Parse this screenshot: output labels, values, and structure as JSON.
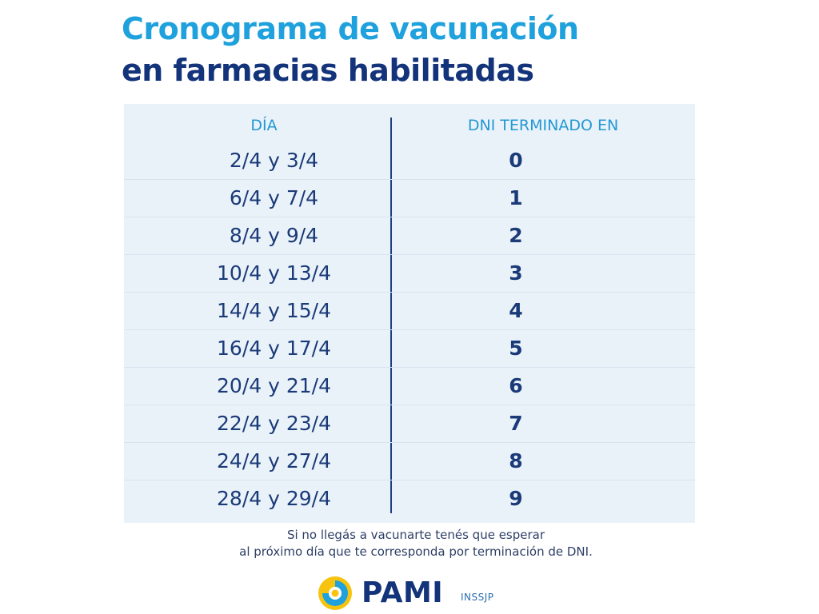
{
  "title": {
    "line1": "Cronograma de vacunación",
    "line2": "en farmacias habilitadas"
  },
  "table": {
    "headers": {
      "day": "DÍA",
      "dni": "DNI TERMINADO EN"
    },
    "rows": [
      {
        "day": "2/4 y 3/4",
        "digit": "0"
      },
      {
        "day": "6/4 y 7/4",
        "digit": "1"
      },
      {
        "day": "8/4 y 9/4",
        "digit": "2"
      },
      {
        "day": "10/4 y 13/4",
        "digit": "3"
      },
      {
        "day": "14/4 y 15/4",
        "digit": "4"
      },
      {
        "day": "16/4 y 17/4",
        "digit": "5"
      },
      {
        "day": "20/4 y 21/4",
        "digit": "6"
      },
      {
        "day": "22/4 y 23/4",
        "digit": "7"
      },
      {
        "day": "24/4 y 27/4",
        "digit": "8"
      },
      {
        "day": "28/4 y 29/4",
        "digit": "9"
      }
    ]
  },
  "note": {
    "line1": "Si no llegás a vacunarte tenés que esperar",
    "line2": "al próximo día que te corresponda por terminación de DNI."
  },
  "logo": {
    "icon": "pami-logo-icon",
    "name": "PAMI",
    "sub": "INSSJP"
  },
  "colors": {
    "title_accent": "#1ea1dc",
    "title_dark": "#13337a",
    "panel_bg": "#eaf2f9",
    "header_text": "#2398d4",
    "body_text": "#1a3a78",
    "logo_yellow": "#f6c40f"
  }
}
